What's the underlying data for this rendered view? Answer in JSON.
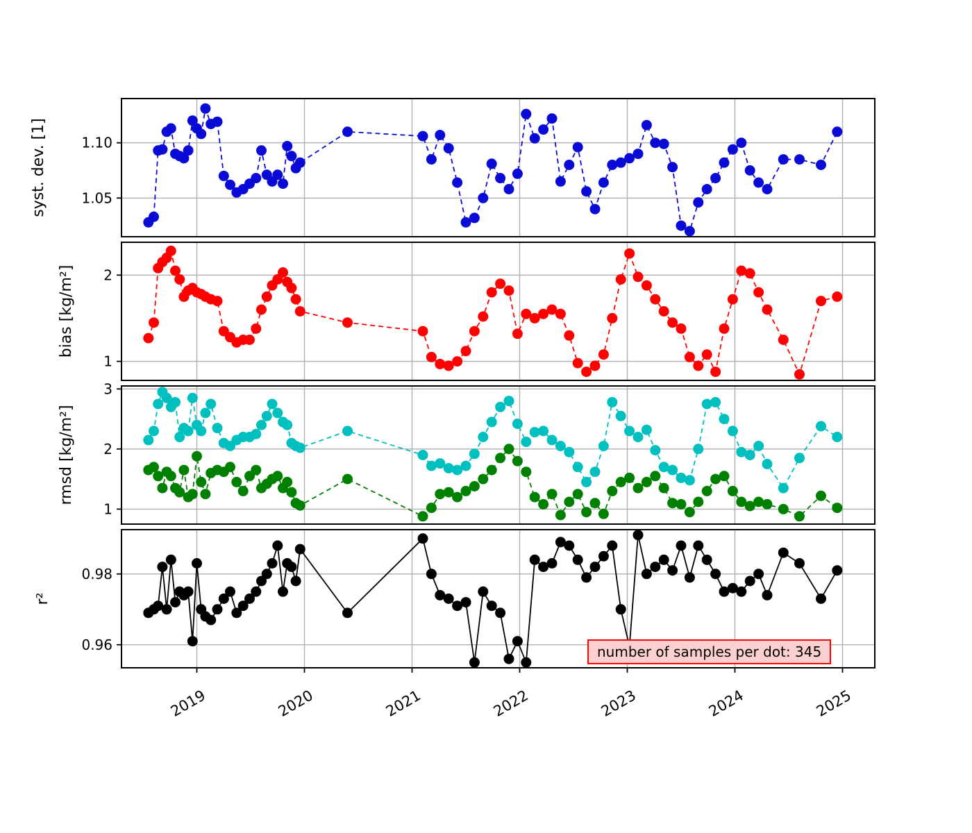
{
  "chart_data": {
    "type": "scatter",
    "title": "",
    "xlabel": "",
    "grid": true,
    "x": [
      2018.55,
      2018.6,
      2018.64,
      2018.68,
      2018.72,
      2018.76,
      2018.8,
      2018.84,
      2018.88,
      2018.92,
      2018.96,
      2019.0,
      2019.04,
      2019.08,
      2019.13,
      2019.19,
      2019.25,
      2019.31,
      2019.37,
      2019.43,
      2019.49,
      2019.55,
      2019.6,
      2019.65,
      2019.7,
      2019.75,
      2019.8,
      2019.84,
      2019.88,
      2019.92,
      2019.96,
      2020.4,
      2021.1,
      2021.18,
      2021.26,
      2021.34,
      2021.42,
      2021.5,
      2021.58,
      2021.66,
      2021.74,
      2021.82,
      2021.9,
      2021.98,
      2022.06,
      2022.14,
      2022.22,
      2022.3,
      2022.38,
      2022.46,
      2022.54,
      2022.62,
      2022.7,
      2022.78,
      2022.86,
      2022.94,
      2023.02,
      2023.1,
      2023.18,
      2023.26,
      2023.34,
      2023.42,
      2023.5,
      2023.58,
      2023.66,
      2023.74,
      2023.82,
      2023.9,
      2023.98,
      2024.06,
      2024.14,
      2024.22,
      2024.3,
      2024.45,
      2024.6,
      2024.8,
      2024.95
    ],
    "x_axis": {
      "ticks": [
        2019,
        2020,
        2021,
        2022,
        2023,
        2024,
        2025
      ],
      "tick_labels": [
        "2019",
        "2020",
        "2021",
        "2022",
        "2023",
        "2024",
        "2025"
      ],
      "range": [
        2018.3,
        2025.3
      ],
      "tick_rotation_deg": 30
    },
    "panels": [
      {
        "id": "syst-dev",
        "ylabel": "syst. dev. [1]",
        "ylim": [
          1.015,
          1.14
        ],
        "yticks": [
          1.05,
          1.1
        ],
        "ytick_labels": [
          "1.05",
          "1.10"
        ],
        "series": [
          {
            "name": "syst-dev",
            "color": "#0a0ad6",
            "line_style": "dashed",
            "y": [
              1.028,
              1.033,
              1.093,
              1.094,
              1.11,
              1.113,
              1.09,
              1.088,
              1.086,
              1.093,
              1.12,
              1.113,
              1.108,
              1.131,
              1.117,
              1.119,
              1.07,
              1.062,
              1.055,
              1.058,
              1.063,
              1.068,
              1.093,
              1.071,
              1.065,
              1.071,
              1.063,
              1.097,
              1.088,
              1.077,
              1.082,
              1.11,
              1.106,
              1.085,
              1.107,
              1.095,
              1.064,
              1.028,
              1.032,
              1.05,
              1.081,
              1.068,
              1.058,
              1.072,
              1.126,
              1.104,
              1.112,
              1.122,
              1.065,
              1.08,
              1.096,
              1.056,
              1.04,
              1.064,
              1.08,
              1.082,
              1.086,
              1.09,
              1.116,
              1.1,
              1.099,
              1.078,
              1.025,
              1.02,
              1.046,
              1.058,
              1.068,
              1.082,
              1.094,
              1.1,
              1.075,
              1.064,
              1.058,
              1.085,
              1.085,
              1.08,
              1.11
            ]
          }
        ]
      },
      {
        "id": "bias",
        "ylabel": "bias [kg/m²]",
        "ylim": [
          0.78,
          2.38
        ],
        "yticks": [
          1,
          2
        ],
        "ytick_labels": [
          "1",
          "2"
        ],
        "series": [
          {
            "name": "bias",
            "color": "#ff0000",
            "line_style": "dashed",
            "y": [
              1.27,
              1.45,
              2.08,
              2.15,
              2.2,
              2.28,
              2.05,
              1.95,
              1.75,
              1.82,
              1.85,
              1.8,
              1.78,
              1.75,
              1.72,
              1.7,
              1.35,
              1.28,
              1.22,
              1.25,
              1.25,
              1.38,
              1.6,
              1.75,
              1.88,
              1.95,
              2.03,
              1.92,
              1.85,
              1.72,
              1.58,
              1.45,
              1.35,
              1.05,
              0.97,
              0.95,
              1.0,
              1.12,
              1.35,
              1.52,
              1.8,
              1.9,
              1.82,
              1.32,
              1.55,
              1.5,
              1.55,
              1.6,
              1.55,
              1.3,
              0.98,
              0.88,
              0.95,
              1.08,
              1.5,
              1.95,
              2.25,
              1.98,
              1.88,
              1.72,
              1.58,
              1.45,
              1.38,
              1.05,
              0.95,
              1.08,
              0.88,
              1.38,
              1.72,
              2.05,
              2.02,
              1.8,
              1.6,
              1.25,
              0.85,
              1.7,
              1.75
            ]
          }
        ]
      },
      {
        "id": "rmsd",
        "ylabel": "rmsd [kg/m²]",
        "ylim": [
          0.75,
          3.05
        ],
        "yticks": [
          1,
          2,
          3
        ],
        "ytick_labels": [
          "1",
          "2",
          "3"
        ],
        "series": [
          {
            "name": "rmsd-series-1",
            "color": "#00bfbf",
            "line_style": "dashed",
            "y": [
              2.15,
              2.3,
              2.75,
              2.95,
              2.85,
              2.7,
              2.78,
              2.2,
              2.35,
              2.3,
              2.85,
              2.4,
              2.3,
              2.6,
              2.75,
              2.35,
              2.1,
              2.05,
              2.15,
              2.2,
              2.2,
              2.25,
              2.4,
              2.55,
              2.75,
              2.6,
              2.45,
              2.4,
              2.1,
              2.05,
              2.02,
              2.3,
              1.9,
              1.72,
              1.76,
              1.68,
              1.65,
              1.72,
              1.92,
              2.2,
              2.45,
              2.7,
              2.8,
              2.42,
              2.12,
              2.28,
              2.3,
              2.15,
              2.05,
              1.95,
              1.7,
              1.45,
              1.62,
              2.05,
              2.78,
              2.55,
              2.3,
              2.2,
              2.32,
              1.98,
              1.7,
              1.65,
              1.52,
              1.48,
              2.0,
              2.75,
              2.78,
              2.5,
              2.3,
              1.95,
              1.9,
              2.05,
              1.75,
              1.35,
              1.85,
              2.38,
              2.2
            ]
          },
          {
            "name": "rmsd-series-2",
            "color": "#008000",
            "line_style": "dashed",
            "y": [
              1.65,
              1.7,
              1.55,
              1.35,
              1.62,
              1.55,
              1.35,
              1.28,
              1.65,
              1.2,
              1.25,
              1.88,
              1.45,
              1.25,
              1.6,
              1.65,
              1.62,
              1.7,
              1.45,
              1.3,
              1.55,
              1.65,
              1.35,
              1.42,
              1.5,
              1.55,
              1.35,
              1.45,
              1.28,
              1.1,
              1.06,
              1.5,
              0.88,
              1.02,
              1.25,
              1.28,
              1.2,
              1.3,
              1.38,
              1.5,
              1.65,
              1.85,
              2.0,
              1.8,
              1.62,
              1.2,
              1.08,
              1.25,
              0.9,
              1.12,
              1.25,
              0.95,
              1.1,
              0.92,
              1.3,
              1.45,
              1.52,
              1.35,
              1.45,
              1.55,
              1.35,
              1.1,
              1.08,
              0.95,
              1.12,
              1.3,
              1.5,
              1.55,
              1.3,
              1.12,
              1.05,
              1.12,
              1.08,
              1.0,
              0.88,
              1.22,
              1.02
            ]
          }
        ]
      },
      {
        "id": "r2",
        "ylabel": "r²",
        "ylim": [
          0.9535,
          0.9925
        ],
        "yticks": [
          0.96,
          0.98
        ],
        "ytick_labels": [
          "0.96",
          "0.98"
        ],
        "series": [
          {
            "name": "r2",
            "color": "#000000",
            "line_style": "solid",
            "y": [
              0.969,
              0.97,
              0.971,
              0.982,
              0.97,
              0.984,
              0.972,
              0.975,
              0.974,
              0.975,
              0.961,
              0.983,
              0.97,
              0.968,
              0.967,
              0.97,
              0.973,
              0.975,
              0.969,
              0.971,
              0.973,
              0.975,
              0.978,
              0.98,
              0.983,
              0.988,
              0.975,
              0.983,
              0.982,
              0.978,
              0.987,
              0.969,
              0.99,
              0.98,
              0.974,
              0.973,
              0.971,
              0.972,
              0.955,
              0.975,
              0.971,
              0.969,
              0.956,
              0.961,
              0.955,
              0.984,
              0.982,
              0.983,
              0.989,
              0.988,
              0.984,
              0.979,
              0.982,
              0.985,
              0.988,
              0.97,
              0.9595,
              0.991,
              0.98,
              0.982,
              0.984,
              0.981,
              0.988,
              0.979,
              0.988,
              0.984,
              0.98,
              0.975,
              0.976,
              0.975,
              0.978,
              0.98,
              0.974,
              0.986,
              0.983,
              0.973,
              0.981
            ]
          }
        ]
      }
    ],
    "annotation": {
      "text": "number of samples per dot: 345",
      "text_color": "#000000",
      "background": "#fdd0d0",
      "border_color": "#ff0000"
    }
  }
}
